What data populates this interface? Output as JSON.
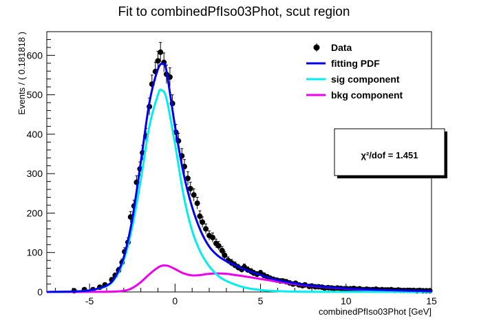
{
  "chart_data": {
    "type": "scatter",
    "title": "Fit to combinedPfIso03Phot, scut region",
    "xlabel": "combinedPfIso03Phot [GeV]",
    "ylabel": "Events / ( 0.181818 )",
    "xlim": [
      -7.5,
      15
    ],
    "ylim": [
      0,
      660
    ],
    "x_ticks": [
      -5,
      0,
      5,
      10,
      15
    ],
    "y_ticks": [
      0,
      100,
      200,
      300,
      400,
      500,
      600
    ],
    "grid": false,
    "legend_position": "top-right",
    "legend": [
      {
        "label": "Data",
        "kind": "marker",
        "color": "#000000"
      },
      {
        "label": "fitting PDF",
        "kind": "line",
        "color": "#0000ee"
      },
      {
        "label": "sig component",
        "kind": "line",
        "color": "#00eeee"
      },
      {
        "label": "bkg component",
        "kind": "line",
        "color": "#ee00ee"
      }
    ],
    "annotation": {
      "label": "χ²/dof = 1.451"
    },
    "data_points": [
      {
        "x": -5.9,
        "y": 3
      },
      {
        "x": -5.3,
        "y": 6
      },
      {
        "x": -4.8,
        "y": 6
      },
      {
        "x": -4.4,
        "y": 12
      },
      {
        "x": -4.1,
        "y": 18
      },
      {
        "x": -3.7,
        "y": 31
      },
      {
        "x": -3.5,
        "y": 42
      },
      {
        "x": -3.3,
        "y": 55
      },
      {
        "x": -3.1,
        "y": 75
      },
      {
        "x": -2.95,
        "y": 102
      },
      {
        "x": -2.75,
        "y": 126
      },
      {
        "x": -2.6,
        "y": 190
      },
      {
        "x": -2.4,
        "y": 218
      },
      {
        "x": -2.25,
        "y": 278
      },
      {
        "x": -2.05,
        "y": 312
      },
      {
        "x": -1.9,
        "y": 353
      },
      {
        "x": -1.7,
        "y": 395
      },
      {
        "x": -1.5,
        "y": 470
      },
      {
        "x": -1.35,
        "y": 527
      },
      {
        "x": -1.15,
        "y": 559
      },
      {
        "x": -1.0,
        "y": 586
      },
      {
        "x": -0.85,
        "y": 608
      },
      {
        "x": -0.65,
        "y": 582
      },
      {
        "x": -0.5,
        "y": 552
      },
      {
        "x": -0.3,
        "y": 545
      },
      {
        "x": -0.15,
        "y": 478
      },
      {
        "x": 0.05,
        "y": 405
      },
      {
        "x": 0.2,
        "y": 383
      },
      {
        "x": 0.4,
        "y": 345
      },
      {
        "x": 0.55,
        "y": 318
      },
      {
        "x": 0.75,
        "y": 288
      },
      {
        "x": 0.9,
        "y": 262
      },
      {
        "x": 1.1,
        "y": 246
      },
      {
        "x": 1.3,
        "y": 225
      },
      {
        "x": 1.45,
        "y": 192
      },
      {
        "x": 1.6,
        "y": 177
      },
      {
        "x": 1.8,
        "y": 160
      },
      {
        "x": 2.0,
        "y": 143
      },
      {
        "x": 2.2,
        "y": 138
      },
      {
        "x": 2.4,
        "y": 123
      },
      {
        "x": 2.55,
        "y": 117
      },
      {
        "x": 2.75,
        "y": 105
      },
      {
        "x": 2.9,
        "y": 93
      },
      {
        "x": 3.1,
        "y": 80
      },
      {
        "x": 3.3,
        "y": 74
      },
      {
        "x": 3.5,
        "y": 68
      },
      {
        "x": 3.7,
        "y": 62
      },
      {
        "x": 3.9,
        "y": 57
      },
      {
        "x": 4.05,
        "y": 63
      },
      {
        "x": 4.25,
        "y": 56
      },
      {
        "x": 4.45,
        "y": 52
      },
      {
        "x": 4.6,
        "y": 48
      },
      {
        "x": 4.8,
        "y": 45
      },
      {
        "x": 5.0,
        "y": 48
      },
      {
        "x": 5.2,
        "y": 42
      },
      {
        "x": 5.4,
        "y": 38
      },
      {
        "x": 5.55,
        "y": 35
      },
      {
        "x": 5.75,
        "y": 32
      },
      {
        "x": 5.95,
        "y": 30
      },
      {
        "x": 6.15,
        "y": 28
      },
      {
        "x": 6.3,
        "y": 28
      },
      {
        "x": 6.5,
        "y": 26
      },
      {
        "x": 6.7,
        "y": 23
      },
      {
        "x": 6.9,
        "y": 20
      },
      {
        "x": 7.05,
        "y": 22
      },
      {
        "x": 7.25,
        "y": 18
      },
      {
        "x": 7.45,
        "y": 16
      },
      {
        "x": 7.6,
        "y": 18
      },
      {
        "x": 7.85,
        "y": 14
      },
      {
        "x": 8.0,
        "y": 15
      },
      {
        "x": 8.2,
        "y": 13
      },
      {
        "x": 8.4,
        "y": 13
      },
      {
        "x": 8.6,
        "y": 12
      },
      {
        "x": 8.75,
        "y": 10
      },
      {
        "x": 8.95,
        "y": 11
      },
      {
        "x": 9.15,
        "y": 10
      },
      {
        "x": 9.3,
        "y": 9
      },
      {
        "x": 9.5,
        "y": 10
      },
      {
        "x": 9.7,
        "y": 9
      },
      {
        "x": 9.9,
        "y": 8
      },
      {
        "x": 10.05,
        "y": 8
      },
      {
        "x": 10.25,
        "y": 8
      },
      {
        "x": 10.45,
        "y": 9
      },
      {
        "x": 10.6,
        "y": 7
      },
      {
        "x": 10.8,
        "y": 8
      },
      {
        "x": 11.0,
        "y": 6
      },
      {
        "x": 11.2,
        "y": 7
      },
      {
        "x": 11.35,
        "y": 6
      },
      {
        "x": 11.55,
        "y": 6
      },
      {
        "x": 11.75,
        "y": 7
      },
      {
        "x": 11.9,
        "y": 5
      },
      {
        "x": 12.1,
        "y": 6
      },
      {
        "x": 12.3,
        "y": 5
      },
      {
        "x": 12.45,
        "y": 5
      },
      {
        "x": 12.65,
        "y": 6
      },
      {
        "x": 12.85,
        "y": 4
      },
      {
        "x": 13.05,
        "y": 5
      },
      {
        "x": 13.2,
        "y": 4
      },
      {
        "x": 13.4,
        "y": 4
      },
      {
        "x": 13.6,
        "y": 4
      },
      {
        "x": 13.75,
        "y": 4
      },
      {
        "x": 13.95,
        "y": 4
      },
      {
        "x": 14.15,
        "y": 3
      },
      {
        "x": 14.3,
        "y": 4
      },
      {
        "x": 14.5,
        "y": 3
      },
      {
        "x": 14.7,
        "y": 3
      },
      {
        "x": 14.9,
        "y": 3
      }
    ],
    "curves": {
      "fitting PDF": {
        "x": [
          -7.5,
          -6,
          -5,
          -4,
          -3.5,
          -3,
          -2.5,
          -2,
          -1.5,
          -1,
          -0.7,
          -0.5,
          0,
          0.5,
          1,
          1.5,
          2,
          2.5,
          3,
          3.5,
          4,
          5,
          6,
          7,
          8,
          10,
          12,
          15
        ],
        "y": [
          0,
          1,
          4,
          16,
          38,
          88,
          185,
          330,
          480,
          565,
          578,
          560,
          420,
          300,
          215,
          155,
          115,
          92,
          78,
          68,
          58,
          43,
          30,
          22,
          16,
          9,
          5,
          2
        ]
      },
      "sig component": {
        "x": [
          -7.5,
          -6,
          -5,
          -4,
          -3.5,
          -3,
          -2.5,
          -2,
          -1.5,
          -1,
          -0.8,
          -0.5,
          0,
          0.5,
          1,
          1.5,
          2,
          2.5,
          3,
          4,
          5,
          6,
          8,
          15
        ],
        "y": [
          0,
          1,
          4,
          15,
          35,
          80,
          165,
          285,
          420,
          500,
          512,
          490,
          375,
          245,
          155,
          100,
          65,
          42,
          28,
          12,
          5,
          2,
          0.5,
          0
        ]
      },
      "bkg component": {
        "x": [
          -7.5,
          -4,
          -3,
          -2.5,
          -2,
          -1.5,
          -1,
          -0.7,
          -0.4,
          0,
          0.5,
          1,
          1.5,
          2,
          2.5,
          3,
          3.5,
          4,
          5,
          6,
          7,
          8,
          10,
          12,
          15
        ],
        "y": [
          0,
          0.5,
          3,
          10,
          25,
          45,
          62,
          67,
          66,
          58,
          47,
          42,
          43,
          46,
          47,
          46,
          43,
          40,
          33,
          26,
          20,
          15,
          8,
          4,
          1
        ]
      }
    }
  }
}
